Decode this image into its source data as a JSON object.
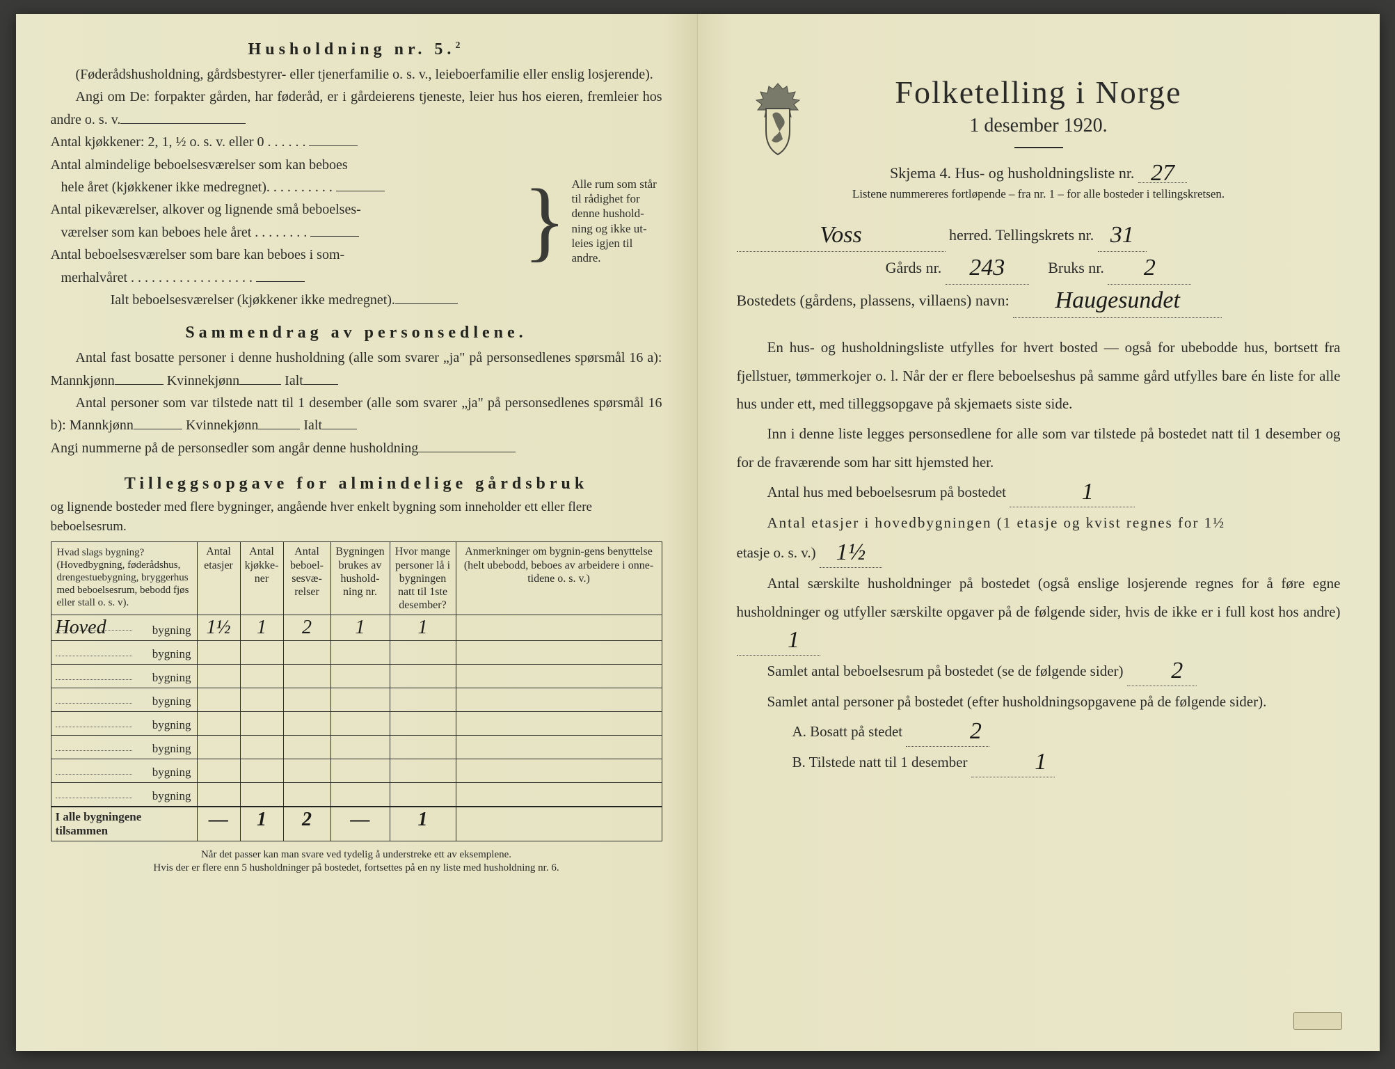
{
  "left": {
    "hush5": {
      "title": "Husholdning nr. 5.",
      "sup": "2",
      "intro1": "(Føderådshusholdning, gårdsbestyrer- eller tjenerfamilie o. s. v., leieboerfamilie eller enslig losjerende).",
      "intro2": "Angi om De:  forpakter gården, har føderåd, er i gårdeierens tjeneste, leier hus hos eieren, fremleier hos andre o. s. v.",
      "line_kjokkener": "Antal kjøkkener: 2, 1, ½ o. s. v. eller 0",
      "line_almindelige1": "Antal almindelige beboelsesværelser som kan beboes",
      "line_almindelige2": "hele året (kjøkkener ikke medregnet).",
      "line_pike1": "Antal pikeværelser, alkover og lignende små beboelses-",
      "line_pike2": "værelser som kan beboes hele året",
      "line_sommer1": "Antal beboelsesværelser som bare kan beboes i som-",
      "line_sommer2": "merhalvåret",
      "line_ialt": "Ialt beboelsesværelser  (kjøkkener ikke medregnet).",
      "brace_text": "Alle rum som står til rådighet for denne hushold-ning og ikke ut-leies igjen til andre."
    },
    "sammendrag": {
      "title": "Sammendrag av personsedlene.",
      "p1a": "Antal fast bosatte personer i denne husholdning (alle som svarer „ja\" på personsedlenes spørsmål 16 a): Mannkjønn",
      "p1b": "Kvinnekjønn",
      "p1c": "Ialt",
      "p2a": "Antal personer som var tilstede natt til 1 desember (alle som svarer „ja\" på personsedlenes spørsmål 16 b): Mannkjønn",
      "p2b": "Kvinnekjønn",
      "p2c": "Ialt",
      "p3": "Angi nummerne på de personsedler som angår denne husholdning"
    },
    "tillegg": {
      "title": "Tilleggsopgave for almindelige gårdsbruk",
      "sub": "og lignende bosteder med flere bygninger, angående hver enkelt bygning som inneholder ett eller flere beboelsesrum.",
      "columns": [
        "Hvad slags bygning?\n(Hovedbygning, føderådshus, drengestuebygning, bryggerhus med beboelsesrum, bebodd fjøs eller stall o. s. v).",
        "Antal etasjer",
        "Antal kjøkke-ner",
        "Antal beboel-sesvæ-relser",
        "Bygningen brukes av hushold-ning nr.",
        "Hvor mange personer lå i bygningen natt til 1ste desember?",
        "Anmerkninger om bygnin-gens benyttelse (helt ubebodd, beboes av arbeidere i onne-tidene o. s. v.)"
      ],
      "rows": [
        {
          "label": "Hoved",
          "etasjer": "1½",
          "kjokkener": "1",
          "vaerelser": "2",
          "hushold": "1",
          "personer": "1",
          "anm": ""
        },
        {
          "label": "",
          "etasjer": "",
          "kjokkener": "",
          "vaerelser": "",
          "hushold": "",
          "personer": "",
          "anm": ""
        },
        {
          "label": "",
          "etasjer": "",
          "kjokkener": "",
          "vaerelser": "",
          "hushold": "",
          "personer": "",
          "anm": ""
        },
        {
          "label": "",
          "etasjer": "",
          "kjokkener": "",
          "vaerelser": "",
          "hushold": "",
          "personer": "",
          "anm": ""
        },
        {
          "label": "",
          "etasjer": "",
          "kjokkener": "",
          "vaerelser": "",
          "hushold": "",
          "personer": "",
          "anm": ""
        },
        {
          "label": "",
          "etasjer": "",
          "kjokkener": "",
          "vaerelser": "",
          "hushold": "",
          "personer": "",
          "anm": ""
        },
        {
          "label": "",
          "etasjer": "",
          "kjokkener": "",
          "vaerelser": "",
          "hushold": "",
          "personer": "",
          "anm": ""
        },
        {
          "label": "",
          "etasjer": "",
          "kjokkener": "",
          "vaerelser": "",
          "hushold": "",
          "personer": "",
          "anm": ""
        }
      ],
      "total_label": "I alle bygningene tilsammen",
      "total": {
        "etasjer": "—",
        "kjokkener": "1",
        "vaerelser": "2",
        "hushold": "—",
        "personer": "1",
        "anm": ""
      },
      "bygning_word": "bygning"
    },
    "footnote1": "Når det passer kan man svare ved tydelig å understreke ett av eksemplene.",
    "footnote2": "Hvis der er flere enn 5 husholdninger på bostedet, fortsettes på en ny liste med husholdning nr. 6."
  },
  "right": {
    "title": "Folketelling  i  Norge",
    "date": "1 desember 1920.",
    "schema_a": "Skjema 4.   Hus- og husholdningsliste nr.",
    "schema_val": "27",
    "schema_note": "Listene nummereres fortløpende – fra nr. 1 – for alle bosteder i tellingskretsen.",
    "herred_val": "Voss",
    "herred_label": "herred.   Tellingskrets nr.",
    "krets_val": "31",
    "gards_label": "Gårds nr.",
    "gards_val": "243",
    "bruks_label": "Bruks nr.",
    "bruks_val": "2",
    "bosted_label": "Bostedets (gårdens, plassens, villaens) navn:",
    "bosted_val": "Haugesundet",
    "para1": "En hus- og husholdningsliste utfylles for hvert bosted — også for ubebodde hus, bortsett fra fjellstuer, tømmerkojer o. l.  Når der er flere beboelseshus på samme gård utfylles bare én liste for alle hus under ett, med tilleggsopgave på skjemaets siste side.",
    "para2": "Inn i denne liste legges personsedlene for alle som var tilstede på bostedet natt til 1 desember og for de fraværende som har sitt hjemsted her.",
    "line_hus": "Antal hus med beboelsesrum på bostedet",
    "line_hus_val": "1",
    "line_etasjer_a": "Antal  etasjer  i  hovedbygningen  (1 etasje og kvist regnes for 1½",
    "line_etasjer_b": "etasje o. s. v.)",
    "line_etasjer_val": "1½",
    "line_sarskilt": "Antal særskilte husholdninger på bostedet (også enslige losjerende regnes for å føre egne husholdninger og utfyller særskilte opgaver på de følgende sider, hvis de ikke er i full kost hos andre)",
    "line_sarskilt_val": "1",
    "line_samlet_beb": "Samlet antal beboelsesrum på bostedet (se de følgende sider)",
    "line_samlet_beb_val": "2",
    "line_samlet_pers": "Samlet antal personer på bostedet (efter husholdningsopgavene på de følgende sider).",
    "line_A": "A.  Bosatt på stedet",
    "line_A_val": "2",
    "line_B": "B.  Tilstede natt til 1 desember",
    "line_B_val": "1"
  }
}
